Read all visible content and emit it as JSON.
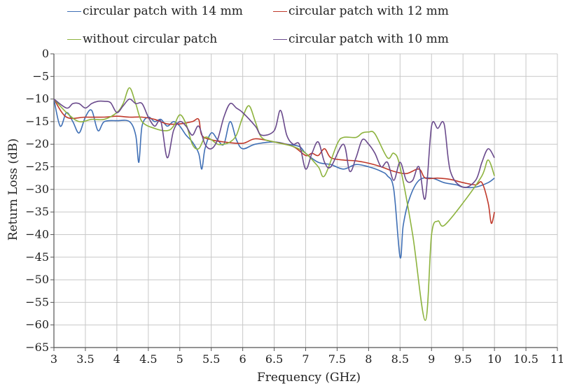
{
  "chart_data": {
    "type": "line",
    "xlabel": "Frequency (GHz)",
    "ylabel": "Return Loss (dB)",
    "xlim": [
      3,
      11
    ],
    "ylim": [
      -65,
      0
    ],
    "x_ticks": [
      "3",
      "3.5",
      "4",
      "4.5",
      "5",
      "5.5",
      "6",
      "6.5",
      "7",
      "7.5",
      "8",
      "8.5",
      "9",
      "9.5",
      "10",
      "10.5",
      "11"
    ],
    "y_ticks": [
      "0",
      "−5",
      "−10",
      "−15",
      "−20",
      "−25",
      "−30",
      "−35",
      "−40",
      "−45",
      "−50",
      "−55",
      "−60",
      "−65"
    ],
    "grid": true,
    "legend_position": "top",
    "series": [
      {
        "name": "circular patch with 14 mm",
        "color": "#3f6fb5",
        "points": [
          [
            3.0,
            -10
          ],
          [
            3.1,
            -16
          ],
          [
            3.2,
            -13
          ],
          [
            3.3,
            -15
          ],
          [
            3.4,
            -17.5
          ],
          [
            3.5,
            -14
          ],
          [
            3.6,
            -12.5
          ],
          [
            3.7,
            -17
          ],
          [
            3.8,
            -15
          ],
          [
            4.0,
            -14.8
          ],
          [
            4.2,
            -15
          ],
          [
            4.3,
            -18
          ],
          [
            4.35,
            -24
          ],
          [
            4.4,
            -16
          ],
          [
            4.5,
            -14
          ],
          [
            4.6,
            -15
          ],
          [
            4.7,
            -14.5
          ],
          [
            4.8,
            -16
          ],
          [
            4.9,
            -15
          ],
          [
            5.0,
            -16
          ],
          [
            5.1,
            -18
          ],
          [
            5.2,
            -19.5
          ],
          [
            5.3,
            -22
          ],
          [
            5.35,
            -25.5
          ],
          [
            5.4,
            -21
          ],
          [
            5.5,
            -17.5
          ],
          [
            5.6,
            -19
          ],
          [
            5.7,
            -20
          ],
          [
            5.8,
            -15
          ],
          [
            5.9,
            -19
          ],
          [
            6.0,
            -21
          ],
          [
            6.2,
            -20
          ],
          [
            6.5,
            -19.5
          ],
          [
            6.7,
            -20
          ],
          [
            6.9,
            -20.5
          ],
          [
            7.0,
            -22
          ],
          [
            7.2,
            -24
          ],
          [
            7.4,
            -24.5
          ],
          [
            7.6,
            -25.5
          ],
          [
            7.8,
            -24.5
          ],
          [
            8.0,
            -25
          ],
          [
            8.2,
            -26
          ],
          [
            8.3,
            -27
          ],
          [
            8.4,
            -30
          ],
          [
            8.5,
            -45
          ],
          [
            8.55,
            -38
          ],
          [
            8.65,
            -32
          ],
          [
            8.8,
            -28
          ],
          [
            9.0,
            -27.5
          ],
          [
            9.2,
            -28.5
          ],
          [
            9.4,
            -29
          ],
          [
            9.5,
            -29.5
          ],
          [
            9.7,
            -29.5
          ],
          [
            9.9,
            -28.5
          ],
          [
            10.0,
            -27.5
          ]
        ]
      },
      {
        "name": "circular patch with 12 mm",
        "color": "#c0392b",
        "points": [
          [
            3.0,
            -10
          ],
          [
            3.2,
            -14
          ],
          [
            3.5,
            -14
          ],
          [
            3.8,
            -14
          ],
          [
            4.0,
            -13.8
          ],
          [
            4.2,
            -14
          ],
          [
            4.4,
            -14
          ],
          [
            4.6,
            -14.5
          ],
          [
            4.8,
            -15.5
          ],
          [
            5.0,
            -15.5
          ],
          [
            5.2,
            -15
          ],
          [
            5.3,
            -14.5
          ],
          [
            5.35,
            -18
          ],
          [
            5.5,
            -19
          ],
          [
            5.7,
            -19.5
          ],
          [
            6.0,
            -19.8
          ],
          [
            6.2,
            -18.8
          ],
          [
            6.5,
            -19.5
          ],
          [
            6.8,
            -20.5
          ],
          [
            7.0,
            -22.5
          ],
          [
            7.1,
            -22
          ],
          [
            7.2,
            -22.5
          ],
          [
            7.3,
            -21
          ],
          [
            7.4,
            -23
          ],
          [
            7.6,
            -23.5
          ],
          [
            7.8,
            -23.7
          ],
          [
            8.0,
            -24.2
          ],
          [
            8.2,
            -25
          ],
          [
            8.4,
            -26
          ],
          [
            8.6,
            -26.5
          ],
          [
            8.8,
            -25.5
          ],
          [
            8.9,
            -27.5
          ],
          [
            9.1,
            -27.5
          ],
          [
            9.3,
            -27.8
          ],
          [
            9.5,
            -28.5
          ],
          [
            9.7,
            -29
          ],
          [
            9.8,
            -28.5
          ],
          [
            9.9,
            -33
          ],
          [
            9.95,
            -37.5
          ],
          [
            10.0,
            -35
          ]
        ]
      },
      {
        "name": "without circular patch",
        "color": "#8db33e",
        "points": [
          [
            3.0,
            -10
          ],
          [
            3.2,
            -13
          ],
          [
            3.4,
            -15
          ],
          [
            3.6,
            -14.5
          ],
          [
            3.8,
            -14.5
          ],
          [
            4.0,
            -13
          ],
          [
            4.1,
            -11
          ],
          [
            4.2,
            -7.5
          ],
          [
            4.3,
            -11
          ],
          [
            4.4,
            -15
          ],
          [
            4.6,
            -16.5
          ],
          [
            4.8,
            -17
          ],
          [
            4.9,
            -16
          ],
          [
            5.0,
            -13.5
          ],
          [
            5.1,
            -15.5
          ],
          [
            5.2,
            -20
          ],
          [
            5.3,
            -21
          ],
          [
            5.4,
            -18.5
          ],
          [
            5.5,
            -19
          ],
          [
            5.6,
            -20
          ],
          [
            5.7,
            -20
          ],
          [
            5.8,
            -19.5
          ],
          [
            5.9,
            -18
          ],
          [
            6.0,
            -14
          ],
          [
            6.1,
            -11.5
          ],
          [
            6.2,
            -15
          ],
          [
            6.3,
            -18.5
          ],
          [
            6.5,
            -19.5
          ],
          [
            6.8,
            -20.5
          ],
          [
            7.0,
            -22
          ],
          [
            7.2,
            -25
          ],
          [
            7.3,
            -27
          ],
          [
            7.5,
            -20
          ],
          [
            7.6,
            -18.5
          ],
          [
            7.8,
            -18.5
          ],
          [
            7.9,
            -17.5
          ],
          [
            8.0,
            -17.3
          ],
          [
            8.1,
            -17.7
          ],
          [
            8.3,
            -23
          ],
          [
            8.4,
            -22
          ],
          [
            8.5,
            -25
          ],
          [
            8.7,
            -40
          ],
          [
            8.9,
            -59
          ],
          [
            9.0,
            -40
          ],
          [
            9.1,
            -37
          ],
          [
            9.2,
            -38
          ],
          [
            9.5,
            -33
          ],
          [
            9.8,
            -27
          ],
          [
            9.9,
            -23.5
          ],
          [
            10.0,
            -27
          ]
        ]
      },
      {
        "name": "circular patch with 10 mm",
        "color": "#6a4a8c",
        "points": [
          [
            3.0,
            -10
          ],
          [
            3.2,
            -12
          ],
          [
            3.3,
            -11
          ],
          [
            3.4,
            -11
          ],
          [
            3.5,
            -12
          ],
          [
            3.6,
            -11
          ],
          [
            3.7,
            -10.5
          ],
          [
            3.8,
            -10.5
          ],
          [
            3.9,
            -10.8
          ],
          [
            4.0,
            -13
          ],
          [
            4.1,
            -11.5
          ],
          [
            4.2,
            -10
          ],
          [
            4.3,
            -11
          ],
          [
            4.4,
            -11
          ],
          [
            4.5,
            -14
          ],
          [
            4.6,
            -16
          ],
          [
            4.7,
            -15
          ],
          [
            4.8,
            -23
          ],
          [
            4.9,
            -17
          ],
          [
            5.0,
            -15
          ],
          [
            5.1,
            -16
          ],
          [
            5.2,
            -18
          ],
          [
            5.3,
            -16
          ],
          [
            5.4,
            -20
          ],
          [
            5.5,
            -21
          ],
          [
            5.6,
            -19
          ],
          [
            5.7,
            -14
          ],
          [
            5.8,
            -11
          ],
          [
            5.9,
            -12
          ],
          [
            6.0,
            -13
          ],
          [
            6.2,
            -16
          ],
          [
            6.3,
            -18
          ],
          [
            6.5,
            -17
          ],
          [
            6.6,
            -12.5
          ],
          [
            6.7,
            -18
          ],
          [
            6.8,
            -20
          ],
          [
            6.9,
            -20
          ],
          [
            7.0,
            -25.5
          ],
          [
            7.1,
            -22
          ],
          [
            7.2,
            -19.5
          ],
          [
            7.3,
            -24
          ],
          [
            7.4,
            -25
          ],
          [
            7.6,
            -20
          ],
          [
            7.7,
            -26
          ],
          [
            7.8,
            -23
          ],
          [
            7.9,
            -19
          ],
          [
            8.0,
            -20
          ],
          [
            8.1,
            -22
          ],
          [
            8.2,
            -25
          ],
          [
            8.3,
            -24
          ],
          [
            8.4,
            -28
          ],
          [
            8.5,
            -24
          ],
          [
            8.6,
            -28
          ],
          [
            8.7,
            -28
          ],
          [
            8.8,
            -25
          ],
          [
            8.9,
            -32
          ],
          [
            9.0,
            -16
          ],
          [
            9.1,
            -16.5
          ],
          [
            9.2,
            -15.5
          ],
          [
            9.3,
            -26
          ],
          [
            9.5,
            -29.5
          ],
          [
            9.7,
            -28
          ],
          [
            9.8,
            -24
          ],
          [
            9.9,
            -21
          ],
          [
            10.0,
            -23
          ]
        ]
      }
    ]
  }
}
